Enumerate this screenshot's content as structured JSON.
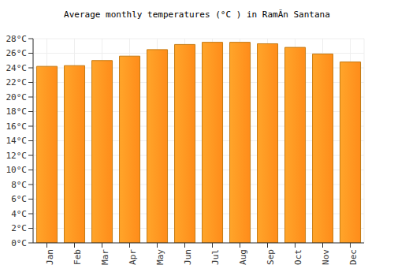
{
  "chart_data": {
    "type": "bar",
    "title": "Average monthly temperatures (°C ) in RamÃn Santana",
    "categories": [
      "Jan",
      "Feb",
      "Mar",
      "Apr",
      "May",
      "Jun",
      "Jul",
      "Aug",
      "Sep",
      "Oct",
      "Nov",
      "Dec"
    ],
    "values": [
      24.2,
      24.3,
      25.0,
      25.6,
      26.5,
      27.2,
      27.5,
      27.5,
      27.3,
      26.8,
      25.9,
      24.8
    ],
    "color": "#ffa52a",
    "ylim": [
      0,
      28
    ],
    "yticks": [
      {
        "value": 0,
        "label": "0°C"
      },
      {
        "value": 2,
        "label": "2°C"
      },
      {
        "value": 4,
        "label": "4°C"
      },
      {
        "value": 6,
        "label": "6°C"
      },
      {
        "value": 8,
        "label": "8°C"
      },
      {
        "value": 10,
        "label": "10°C"
      },
      {
        "value": 12,
        "label": "12°C"
      },
      {
        "value": 14,
        "label": "14°C"
      },
      {
        "value": 16,
        "label": "16°C"
      },
      {
        "value": 18,
        "label": "18°C"
      },
      {
        "value": 20,
        "label": "20°C"
      },
      {
        "value": 22,
        "label": "22°C"
      },
      {
        "value": 24,
        "label": "24°C"
      },
      {
        "value": 26,
        "label": "26°C"
      },
      {
        "value": 28,
        "label": "28°C"
      }
    ],
    "grid": true
  }
}
